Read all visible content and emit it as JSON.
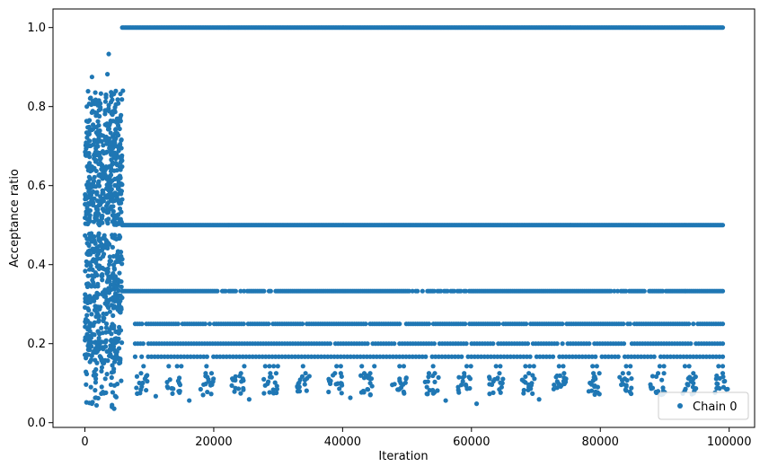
{
  "chart_data": {
    "type": "scatter",
    "xlabel": "Iteration",
    "ylabel": "Acceptance ratio",
    "xlim": [
      -4950,
      103950
    ],
    "ylim": [
      -0.012,
      1.047
    ],
    "xticks": [
      0,
      20000,
      40000,
      60000,
      80000,
      100000
    ],
    "xtick_labels": [
      "0",
      "20000",
      "40000",
      "60000",
      "80000",
      "100000"
    ],
    "yticks": [
      0.0,
      0.2,
      0.4,
      0.6,
      0.8,
      1.0
    ],
    "ytick_labels": [
      "0.0",
      "0.2",
      "0.4",
      "0.6",
      "0.8",
      "1.0"
    ],
    "grid": false,
    "legend_position": "lower-right",
    "series": [
      {
        "name": "Chain 0",
        "color": "#1f77b4",
        "marker": "circle",
        "x_range": [
          0,
          99000
        ],
        "burn_in_end": 5800,
        "burn_in_y_range": [
          0.035,
          0.933
        ],
        "burn_in_outliers": [
          {
            "x": 3700,
            "y": 0.933
          },
          {
            "x": 3500,
            "y": 0.882
          },
          {
            "x": 1100,
            "y": 0.875
          },
          {
            "x": 5900,
            "y": 0.84
          },
          {
            "x": 300,
            "y": 0.8
          },
          {
            "x": 700,
            "y": 0.05
          },
          {
            "x": 4200,
            "y": 0.04
          }
        ],
        "stationary_levels": [
          1.0,
          0.5,
          0.333,
          0.25,
          0.2,
          0.167,
          0.143,
          0.125,
          0.111,
          0.1
        ],
        "stationary_start": 5800,
        "sparse_low_values": [
          {
            "x": 11000,
            "y": 0.067
          },
          {
            "x": 16200,
            "y": 0.056
          },
          {
            "x": 25500,
            "y": 0.059
          },
          {
            "x": 41200,
            "y": 0.063
          },
          {
            "x": 56000,
            "y": 0.056
          },
          {
            "x": 60800,
            "y": 0.048
          },
          {
            "x": 70500,
            "y": 0.059
          },
          {
            "x": 90000,
            "y": 0.077
          },
          {
            "x": 98000,
            "y": 0.111
          }
        ]
      }
    ]
  }
}
